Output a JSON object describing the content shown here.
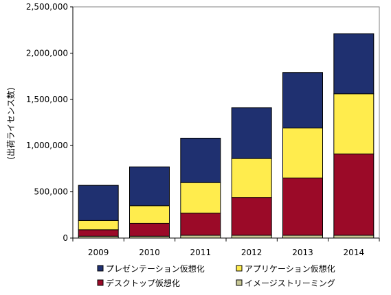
{
  "chart_data": {
    "type": "bar",
    "stacked": true,
    "categories": [
      "2009",
      "2010",
      "2011",
      "2012",
      "2013",
      "2014"
    ],
    "ylabel": "(出荷ライセンス数)",
    "ylim": [
      0,
      2500000
    ],
    "yticks": [
      0,
      500000,
      1000000,
      1500000,
      2000000,
      2500000
    ],
    "ytick_labels": [
      "0",
      "500,000",
      "1,000,000",
      "1,500,000",
      "2,000,000",
      "2,500,000"
    ],
    "grid": false,
    "legend_position": "bottom",
    "series": [
      {
        "name": "イメージストリーミング",
        "color": "#c8c896",
        "values": [
          20000,
          20000,
          30000,
          30000,
          30000,
          30000
        ]
      },
      {
        "name": "デスクトップ仮想化",
        "color": "#9b0a28",
        "values": [
          70000,
          140000,
          240000,
          410000,
          620000,
          880000
        ]
      },
      {
        "name": "アプリケーション仮想化",
        "color": "#ffec4d",
        "values": [
          100000,
          190000,
          330000,
          420000,
          540000,
          650000
        ]
      },
      {
        "name": "プレゼンテーション仮想化",
        "color": "#1f3070",
        "values": [
          380000,
          420000,
          480000,
          550000,
          600000,
          650000
        ]
      }
    ],
    "legend_order": [
      "プレゼンテーション仮想化",
      "アプリケーション仮想化",
      "デスクトップ仮想化",
      "イメージストリーミング"
    ]
  }
}
